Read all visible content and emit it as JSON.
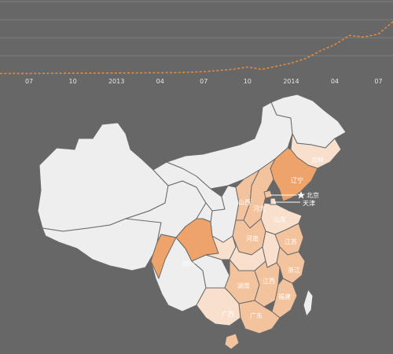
{
  "colors": {
    "background": "#676767",
    "trend": "#e38b3c",
    "base_province": "#eeeeee",
    "scale": [
      "#f8e0cd",
      "#f3c39e",
      "#eea36a",
      "#e06d1a"
    ]
  },
  "timeline": {
    "ticks": [
      {
        "label": "07",
        "date": "2012-07"
      },
      {
        "label": "10",
        "date": "2012-10"
      },
      {
        "label": "2013",
        "date": "2013-01"
      },
      {
        "label": "04",
        "date": "2013-04"
      },
      {
        "label": "07",
        "date": "2013-07"
      },
      {
        "label": "10",
        "date": "2013-10"
      },
      {
        "label": "2014",
        "date": "2014-01"
      },
      {
        "label": "04",
        "date": "2014-04"
      },
      {
        "label": "07",
        "date": "2014-07"
      }
    ],
    "gridlines": 4
  },
  "chart_data": {
    "type": "line",
    "title": "",
    "xlabel": "",
    "ylabel": "",
    "grid": true,
    "x": [
      "2012-05",
      "2012-07",
      "2012-09",
      "2012-11",
      "2013-01",
      "2013-03",
      "2013-05",
      "2013-07",
      "2013-09",
      "2013-10",
      "2013-11",
      "2013-12",
      "2014-01",
      "2014-02",
      "2014-03",
      "2014-04",
      "2014-05",
      "2014-06",
      "2014-07",
      "2014-08"
    ],
    "series": [
      {
        "values": [
          0.5,
          0.6,
          0.8,
          1,
          1.2,
          1.4,
          1.6,
          3,
          6,
          9,
          6,
          10,
          14,
          20,
          30,
          38,
          50,
          48,
          52,
          68
        ]
      }
    ],
    "ylim": [
      0,
      90
    ]
  },
  "map": {
    "provinces": [
      {
        "key": "xinjiang",
        "level": 0
      },
      {
        "key": "tibet",
        "level": 0
      },
      {
        "key": "qinghai",
        "level": 0
      },
      {
        "key": "gansu",
        "level": 0
      },
      {
        "key": "inner_mongolia",
        "level": 0
      },
      {
        "key": "heilongjiang",
        "level": 0
      },
      {
        "key": "jilin",
        "level": 1,
        "label": "吉林"
      },
      {
        "key": "liaoning",
        "level": 3,
        "label": "辽宁"
      },
      {
        "key": "hebei",
        "level": 2,
        "label": "河北"
      },
      {
        "key": "shanxi",
        "level": 2,
        "label": "山西"
      },
      {
        "key": "shandong",
        "level": 1,
        "label": "山东"
      },
      {
        "key": "henan",
        "level": 2,
        "label": "河南"
      },
      {
        "key": "shaanxi",
        "level": 0
      },
      {
        "key": "ningxia",
        "level": 0
      },
      {
        "key": "sichuan",
        "level": 3,
        "label": "四川"
      },
      {
        "key": "chongqing",
        "level": 1
      },
      {
        "key": "hubei",
        "level": 1
      },
      {
        "key": "anhui",
        "level": 1
      },
      {
        "key": "jiangsu",
        "level": 2,
        "label": "江苏"
      },
      {
        "key": "zhejiang",
        "level": 2,
        "label": "浙江"
      },
      {
        "key": "hunan",
        "level": 2,
        "label": "湖南"
      },
      {
        "key": "jiangxi",
        "level": 2,
        "label": "江西"
      },
      {
        "key": "fujian",
        "level": 2,
        "label": "福建"
      },
      {
        "key": "guizhou",
        "level": 0
      },
      {
        "key": "yunnan",
        "level": 0
      },
      {
        "key": "guangxi",
        "level": 1,
        "label": "广西"
      },
      {
        "key": "guangdong",
        "level": 2,
        "label": "广东"
      },
      {
        "key": "hainan",
        "level": 2
      },
      {
        "key": "taiwan",
        "level": 0
      }
    ],
    "callouts": {
      "beijing": "北京",
      "tianjin": "天津"
    }
  }
}
